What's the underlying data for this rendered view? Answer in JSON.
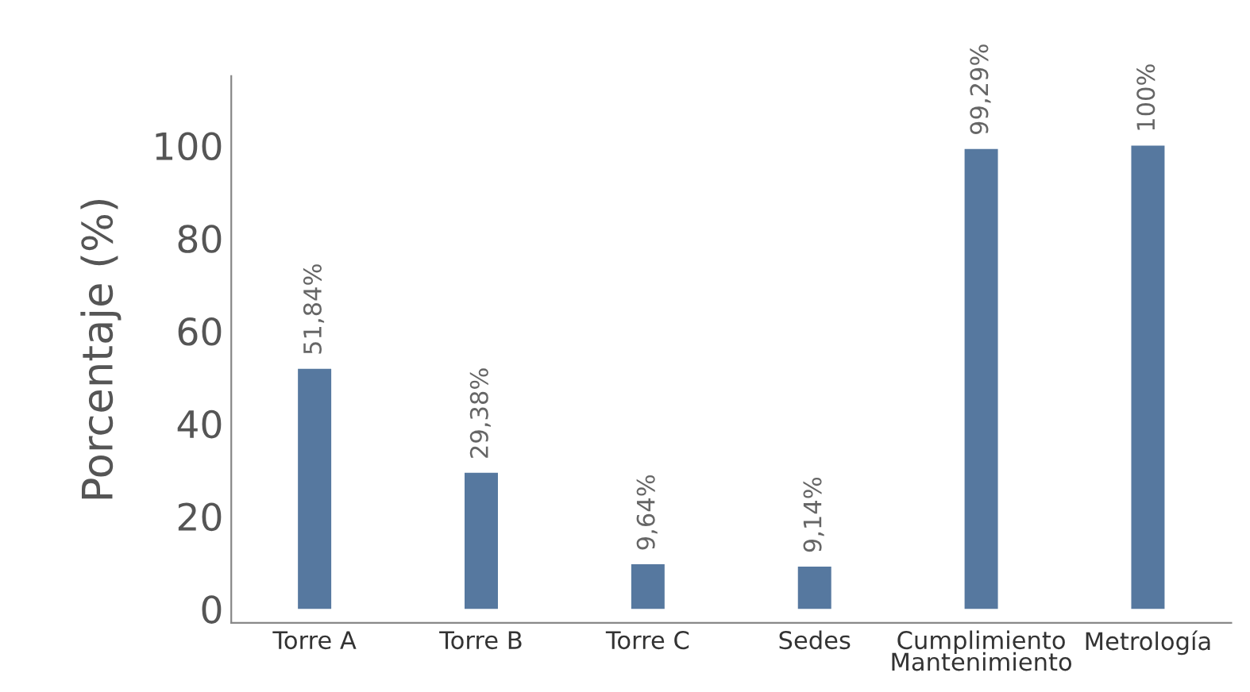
{
  "chart_data": {
    "type": "bar",
    "ylabel": "Porcentaje (%)",
    "categories": [
      "Torre A",
      "Torre B",
      "Torre C",
      "Sedes",
      "Cumplimiento\nMantenimiento",
      "Metrología"
    ],
    "values": [
      51.84,
      29.38,
      9.64,
      9.14,
      99.29,
      100
    ],
    "value_labels": [
      "51,84%",
      "29,38%",
      "9,64%",
      "9,14%",
      "99,29%",
      "100%"
    ],
    "color": "#56789f",
    "ylim": [
      -3,
      115
    ],
    "yticks": [
      0,
      20,
      40,
      60,
      80,
      100
    ],
    "grid": false
  }
}
